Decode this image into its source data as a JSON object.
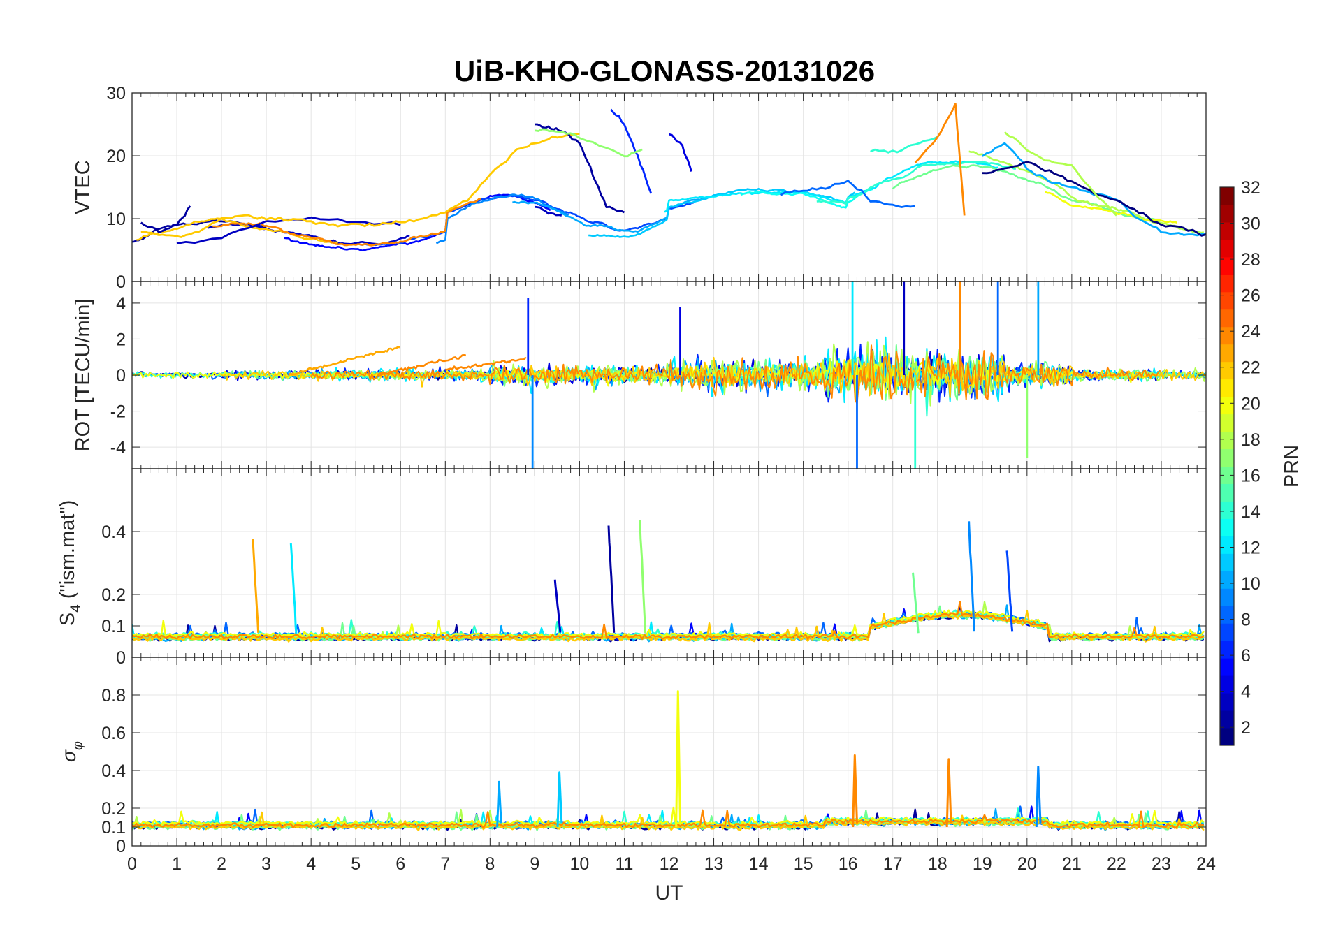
{
  "chart_data": {
    "title": "UiB-KHO-GLONASS-20131026",
    "type": "line",
    "xlabel": "UT",
    "xlim": [
      0,
      24
    ],
    "xticks": [
      0,
      1,
      2,
      3,
      4,
      5,
      6,
      7,
      8,
      9,
      10,
      11,
      12,
      13,
      14,
      15,
      16,
      17,
      18,
      19,
      20,
      21,
      22,
      23,
      24
    ],
    "grid": true,
    "panels": [
      {
        "name": "vtec",
        "ylabel": "VTEC",
        "ylim": [
          0,
          30
        ],
        "yticks": [
          0,
          10,
          20,
          30
        ],
        "series": [
          {
            "prn": 2,
            "x": [
              0.2,
              0.6,
              1.0,
              1.3
            ],
            "y": [
              9.5,
              8,
              9,
              12
            ]
          },
          {
            "prn": 3,
            "x": [
              1.0,
              2.0,
              3.0,
              4.0,
              5.0,
              6.0
            ],
            "y": [
              6,
              7,
              9.5,
              10,
              9.5,
              9
            ]
          },
          {
            "prn": 22,
            "x": [
              0.2,
              0.6,
              1.0,
              1.5,
              2.0,
              2.5,
              3.0,
              3.5,
              4.0,
              4.5,
              5.0,
              5.5,
              6.0,
              6.5,
              7.0,
              7.5,
              8.0,
              8.6,
              9.0,
              9.5,
              10.0
            ],
            "y": [
              8,
              7.5,
              7,
              8,
              10,
              10.5,
              10,
              10,
              9.5,
              9,
              9,
              9,
              9.5,
              10,
              11,
              13,
              17,
              21,
              22,
              23,
              23.5
            ]
          },
          {
            "prn": 2,
            "x": [
              9.0,
              9.3,
              9.6,
              10.0,
              10.3,
              10.6,
              11.0
            ],
            "y": [
              25,
              24.5,
              24,
              22,
              17,
              12,
              11
            ]
          },
          {
            "prn": 3,
            "x": [
              9.0,
              9.3,
              9.6
            ],
            "y": [
              12,
              11,
              10.5
            ]
          },
          {
            "prn": 6,
            "x": [
              10.7,
              11.0,
              11.3,
              11.6
            ],
            "y": [
              27.5,
              25,
              20,
              14
            ]
          },
          {
            "prn": 17,
            "x": [
              9.0,
              9.4,
              9.8,
              10.3,
              11.0,
              11.4
            ],
            "y": [
              24,
              24,
              23.5,
              22,
              20,
              21
            ]
          },
          {
            "prn": 4,
            "x": [
              12.0,
              12.3,
              12.5
            ],
            "y": [
              23.5,
              21.5,
              17.5
            ]
          },
          {
            "prn": 8,
            "x": [
              14.5,
              15.0,
              15.5,
              16.0,
              16.5,
              17.0,
              17.5
            ],
            "y": [
              14,
              14.5,
              15,
              16,
              13,
              12,
              12
            ]
          },
          {
            "prn": 14,
            "x": [
              16.5,
              17.0,
              17.5,
              18.0
            ],
            "y": [
              21,
              20.5,
              22,
              23
            ]
          },
          {
            "prn": 24,
            "x": [
              17.5,
              18.0,
              18.4,
              18.6
            ],
            "y": [
              19,
              23,
              28,
              10.5
            ]
          },
          {
            "prn": 10,
            "x": [
              19.0,
              19.5,
              20.0,
              20.5,
              21.0,
              21.5,
              22.0,
              22.5,
              23.0,
              23.5,
              24.0
            ],
            "y": [
              20,
              22,
              18,
              16,
              15,
              14,
              13,
              10,
              8,
              7.5,
              7.5
            ]
          },
          {
            "prn": 1,
            "x": [
              19.0,
              19.5,
              20.0,
              20.5,
              21.0,
              21.5,
              22.0,
              22.5,
              23.0,
              23.5,
              24.0
            ],
            "y": [
              17,
              18,
              19,
              17.5,
              16,
              14,
              13,
              11,
              9,
              8.5,
              7.5
            ]
          },
          {
            "prn": 18,
            "x": [
              19.5,
              20.0,
              20.5,
              21.0,
              21.5,
              22.0
            ],
            "y": [
              24,
              21,
              19,
              18.5,
              14,
              10.5
            ]
          }
        ]
      },
      {
        "name": "rot",
        "ylabel": "ROT [TECU/min]",
        "ylim": [
          -5.2,
          5.2
        ],
        "yticks": [
          -4,
          -2,
          0,
          2,
          4
        ],
        "spikes": [
          {
            "prn": 6,
            "x": 8.85,
            "y": 4.3
          },
          {
            "prn": 9,
            "x": 8.95,
            "y": -5.2
          },
          {
            "prn": 4,
            "x": 12.25,
            "y": 3.8
          },
          {
            "prn": 12,
            "x": 16.1,
            "y": 5.2
          },
          {
            "prn": 8,
            "x": 16.2,
            "y": -5.2
          },
          {
            "prn": 3,
            "x": 17.25,
            "y": 5.2
          },
          {
            "prn": 24,
            "x": 18.5,
            "y": 5.2
          },
          {
            "prn": 8,
            "x": 19.35,
            "y": 5.2
          },
          {
            "prn": 10,
            "x": 20.25,
            "y": 5.2
          },
          {
            "prn": 14,
            "x": 17.5,
            "y": -5.2
          },
          {
            "prn": 17,
            "x": 20.0,
            "y": -4.6
          }
        ]
      },
      {
        "name": "s4",
        "ylabel": "S4 (\"ism.mat\")",
        "ylim": [
          0,
          0.6
        ],
        "yticks": [
          0,
          0.1,
          0.2,
          0.4
        ],
        "spikes": [
          {
            "prn": 23,
            "x": 2.7,
            "y": 0.37
          },
          {
            "prn": 12,
            "x": 3.55,
            "y": 0.36
          },
          {
            "prn": 3,
            "x": 9.45,
            "y": 0.25
          },
          {
            "prn": 2,
            "x": 10.65,
            "y": 0.42
          },
          {
            "prn": 17,
            "x": 11.35,
            "y": 0.43
          },
          {
            "prn": 16,
            "x": 17.45,
            "y": 0.27
          },
          {
            "prn": 9,
            "x": 18.7,
            "y": 0.43
          },
          {
            "prn": 7,
            "x": 19.55,
            "y": 0.34
          }
        ]
      },
      {
        "name": "sigma_phi",
        "ylabel": "σφ",
        "ylim": [
          0,
          1
        ],
        "yticks": [
          0,
          0.1,
          0.2,
          0.4,
          0.6,
          0.8
        ],
        "spikes": [
          {
            "prn": 20,
            "x": 12.2,
            "y": 0.82
          },
          {
            "prn": 24,
            "x": 16.15,
            "y": 0.48
          },
          {
            "prn": 24,
            "x": 18.25,
            "y": 0.46
          },
          {
            "prn": 9,
            "x": 20.25,
            "y": 0.42
          },
          {
            "prn": 10,
            "x": 8.2,
            "y": 0.34
          },
          {
            "prn": 11,
            "x": 9.55,
            "y": 0.39
          }
        ]
      }
    ],
    "colorbar": {
      "label": "PRN",
      "range": [
        1,
        32
      ],
      "ticks": [
        2,
        4,
        6,
        8,
        10,
        12,
        14,
        16,
        18,
        20,
        22,
        24,
        26,
        28,
        30,
        32
      ],
      "colormap": "jet"
    }
  }
}
